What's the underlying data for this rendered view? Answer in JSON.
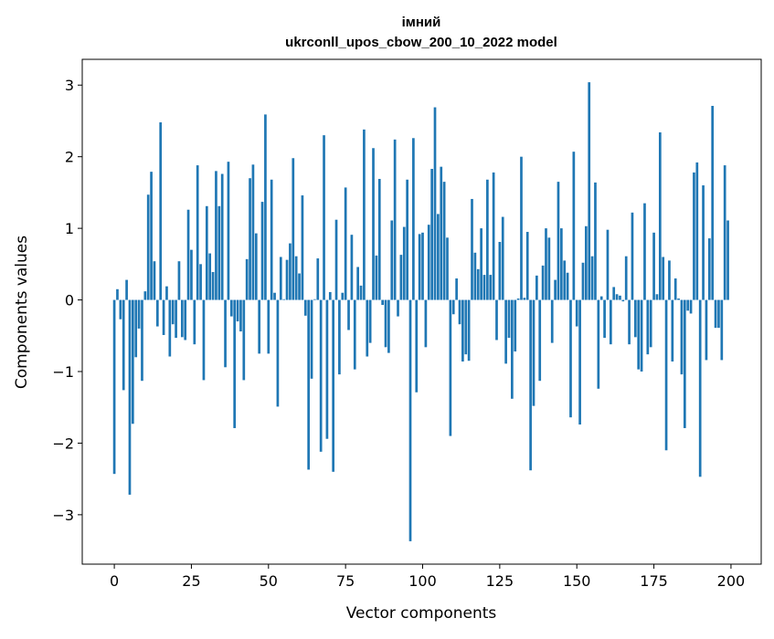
{
  "chart_data": {
    "type": "bar",
    "title_line1": "імний",
    "title_line2": "ukrconll_upos_cbow_200_10_2022 model",
    "xlabel": "Vector components",
    "ylabel": "Components values",
    "xlim": [
      -10.4,
      209.8
    ],
    "ylim": [
      -3.69,
      3.36
    ],
    "xticks": [
      0,
      25,
      50,
      75,
      100,
      125,
      150,
      175,
      200
    ],
    "xtick_labels": [
      "0",
      "25",
      "50",
      "75",
      "100",
      "125",
      "150",
      "175",
      "200"
    ],
    "yticks": [
      -3,
      -2,
      -1,
      0,
      1,
      2,
      3
    ],
    "ytick_labels": [
      "−3",
      "−2",
      "−1",
      "0",
      "1",
      "2",
      "3"
    ],
    "grid": false,
    "bar_color": "#1f77b4",
    "values": [
      -2.43,
      0.15,
      -0.27,
      -1.26,
      0.28,
      -2.72,
      -1.73,
      -0.8,
      -0.4,
      -1.13,
      0.12,
      1.47,
      1.79,
      0.54,
      -0.37,
      2.48,
      -0.49,
      0.19,
      -0.79,
      -0.34,
      -0.53,
      0.54,
      -0.52,
      -0.56,
      1.26,
      0.7,
      -0.62,
      1.88,
      0.5,
      -1.12,
      1.31,
      0.65,
      0.39,
      1.8,
      1.31,
      1.76,
      -0.94,
      1.93,
      -0.23,
      -1.79,
      -0.3,
      -0.44,
      -1.12,
      0.57,
      1.7,
      1.89,
      0.93,
      -0.75,
      1.37,
      2.59,
      -0.75,
      1.68,
      0.1,
      -1.49,
      0.6,
      0.01,
      0.56,
      0.79,
      1.98,
      0.61,
      0.37,
      1.46,
      -0.22,
      -2.37,
      -1.1,
      0.01,
      0.58,
      -2.12,
      2.3,
      -1.94,
      0.11,
      -2.4,
      1.12,
      -1.04,
      0.1,
      1.57,
      -0.42,
      0.91,
      -0.97,
      0.46,
      0.2,
      2.38,
      -0.79,
      -0.6,
      2.12,
      0.62,
      1.69,
      -0.07,
      -0.66,
      -0.74,
      1.11,
      2.24,
      -0.23,
      0.63,
      1.02,
      1.68,
      -3.37,
      2.26,
      -1.29,
      0.92,
      0.94,
      -0.66,
      1.05,
      1.83,
      2.69,
      1.2,
      1.86,
      1.65,
      0.87,
      -1.9,
      -0.2,
      0.3,
      -0.34,
      -0.86,
      -0.76,
      -0.85,
      1.41,
      0.66,
      0.43,
      1.0,
      0.35,
      1.68,
      0.35,
      1.78,
      -0.56,
      0.81,
      1.16,
      -0.89,
      -0.53,
      -1.38,
      -0.72,
      0.02,
      2.0,
      0.03,
      0.95,
      -2.38,
      -1.48,
      0.34,
      -1.13,
      0.48,
      1.0,
      0.87,
      -0.6,
      0.28,
      1.65,
      1.0,
      0.55,
      0.38,
      -1.64,
      2.07,
      -0.37,
      -1.74,
      0.52,
      1.03,
      3.04,
      0.61,
      1.64,
      -1.24,
      0.05,
      -0.53,
      0.98,
      -0.62,
      0.18,
      0.08,
      0.06,
      -0.02,
      0.61,
      -0.62,
      1.22,
      -0.52,
      -0.97,
      -1.0,
      1.35,
      -0.76,
      -0.66,
      0.94,
      0.08,
      2.34,
      0.6,
      -2.1,
      0.55,
      -0.86,
      0.3,
      0.02,
      -1.04,
      -1.79,
      -0.15,
      -0.19,
      1.78,
      1.92,
      -2.47,
      1.6,
      -0.84,
      0.86,
      2.71,
      -0.39,
      -0.39,
      -0.84,
      1.88,
      1.11
    ]
  }
}
